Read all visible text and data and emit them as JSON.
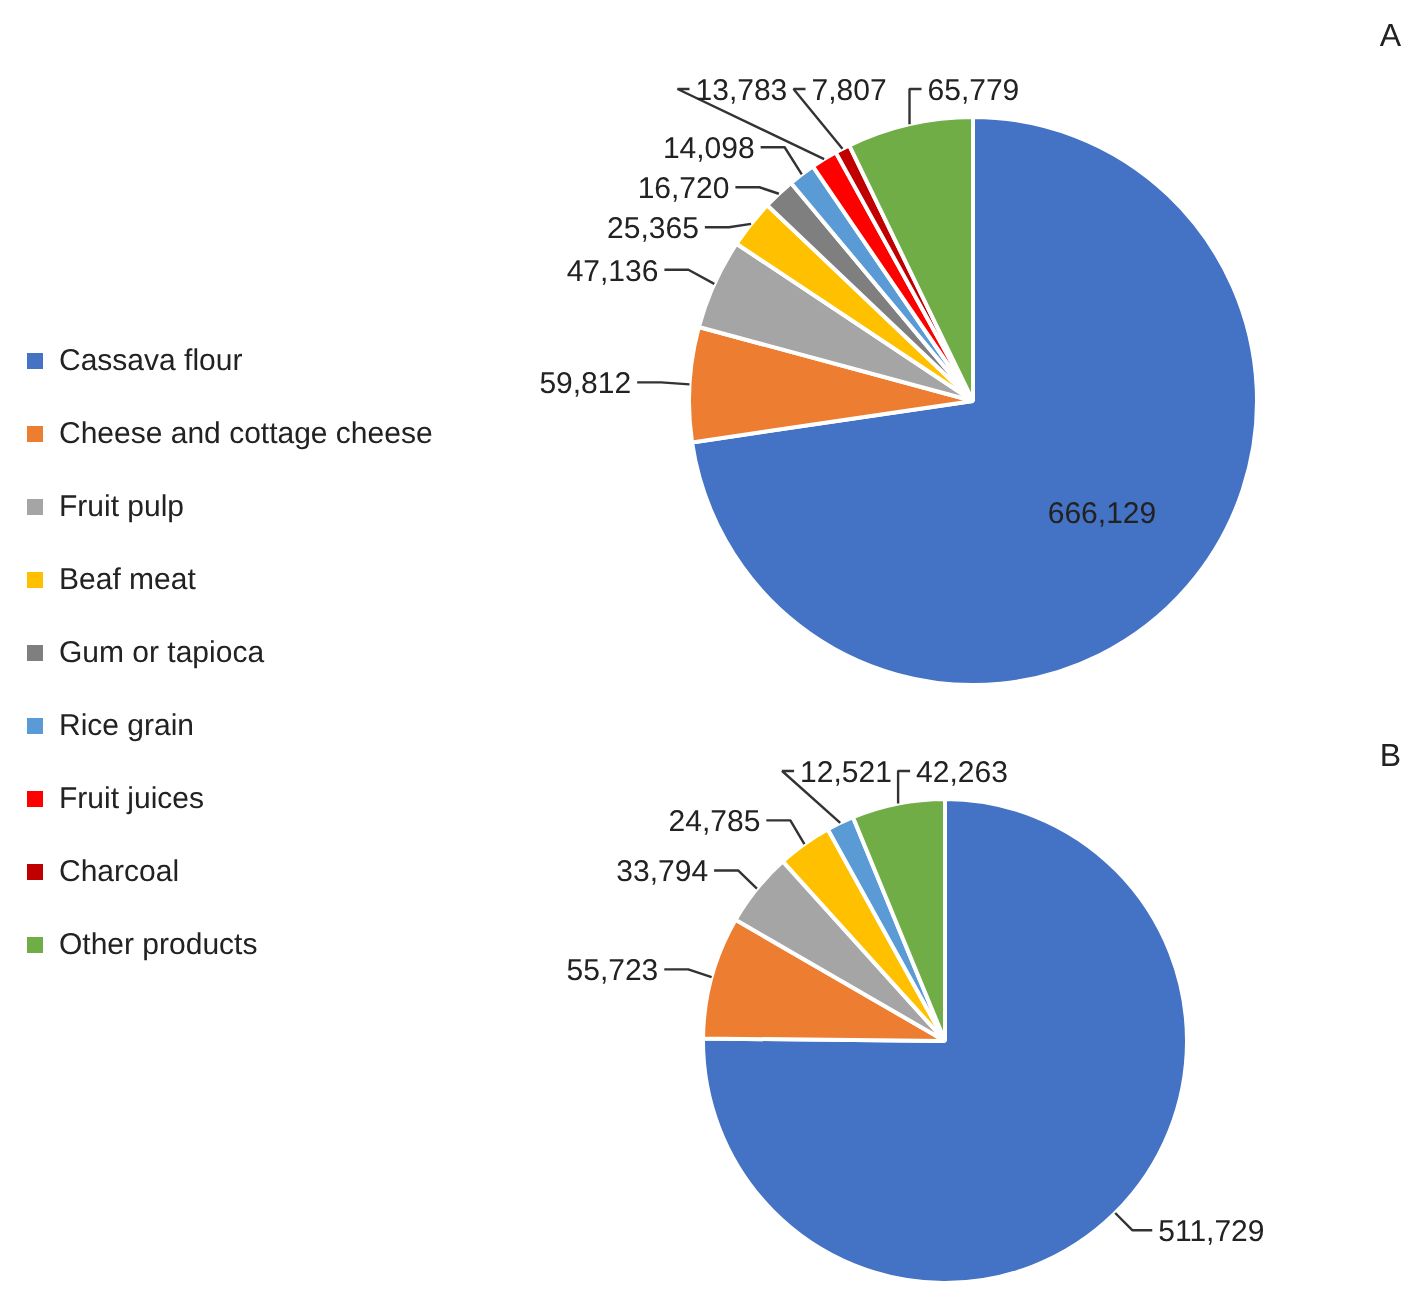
{
  "chart_data": [
    {
      "type": "pie",
      "title": "A",
      "legend": "left",
      "categories": [
        "Cassava flour",
        "Cheese and cottage cheese",
        "Fruit pulp",
        "Beaf meat",
        "Gum or tapioca",
        "Rice grain",
        "Fruit juices",
        "Charcoal",
        "Other products"
      ],
      "values": [
        666129,
        59812,
        47136,
        25365,
        16720,
        14098,
        13783,
        7807,
        65779
      ],
      "value_labels": [
        "666,129",
        "59,812",
        "47,136",
        "25,365",
        "16,720",
        "14,098",
        "13,783",
        "7,807",
        "65,779"
      ],
      "colors": [
        "#4472c4",
        "#ed7d31",
        "#a5a5a5",
        "#ffc000",
        "#7f7f7f",
        "#5b9bd5",
        "#ff0000",
        "#c00000",
        "#70ad47"
      ]
    },
    {
      "type": "pie",
      "title": "B",
      "categories": [
        null,
        null,
        null,
        null,
        null,
        null
      ],
      "values": [
        511729,
        55723,
        33794,
        24785,
        12521,
        42263
      ],
      "value_labels": [
        "511,729",
        "55,723",
        "33,794",
        "24,785",
        "12,521",
        "42,263"
      ],
      "colors": [
        "#4472c4",
        "#ed7d31",
        "#a5a5a5",
        "#ffc000",
        "#5b9bd5",
        "#70ad47"
      ]
    }
  ]
}
